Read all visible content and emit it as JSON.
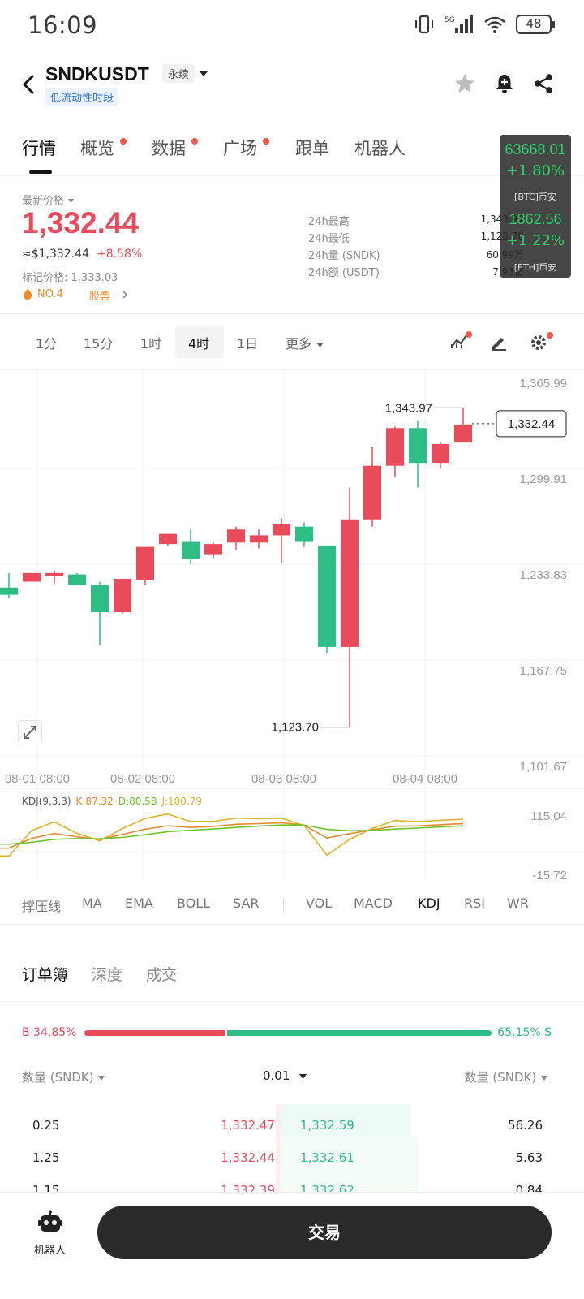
{
  "status_bar": {
    "time": "16:09",
    "battery": "48",
    "network": "5G"
  },
  "header": {
    "symbol": "SNDKUSDT",
    "contract_type": "永续",
    "liquidity_tag": "低流动性时段"
  },
  "tabs": [
    {
      "label": "行情",
      "badge": false
    },
    {
      "label": "概览",
      "badge": true
    },
    {
      "label": "数据",
      "badge": true
    },
    {
      "label": "广场",
      "badge": true
    },
    {
      "label": "跟单",
      "badge": false
    },
    {
      "label": "机器人",
      "badge": false
    }
  ],
  "price": {
    "last_label": "最新价格",
    "last": "1,332.44",
    "usd": "≈$1,332.44",
    "change": "+8.58%",
    "mark": "标记价格: 1,333.03",
    "rank": "NO.4",
    "category": "股票"
  },
  "stats": [
    {
      "label": "24h最高",
      "value": "1,343.97"
    },
    {
      "label": "24h最低",
      "value": "1,123.70"
    },
    {
      "label": "24h量 (SNDK)",
      "value": "60.99万"
    },
    {
      "label": "24h额 (USDT)",
      "value": "7.93亿"
    }
  ],
  "floating_ticker": [
    {
      "price": "63668.01",
      "change": "+1.80%",
      "name": "[BTC]币安"
    },
    {
      "price": "1862.56",
      "change": "+1.22%",
      "name": "[ETH]币安"
    }
  ],
  "timeframes": [
    "1分",
    "15分",
    "1时",
    "4时",
    "1日",
    "更多"
  ],
  "active_timeframe": "4时",
  "chart_data": {
    "type": "candlestick",
    "y_ticks": [
      "1,365.99",
      "1,299.91",
      "1,233.83",
      "1,167.75",
      "1,101.67"
    ],
    "ylim": [
      1101.67,
      1365.99
    ],
    "x_ticks": [
      "08-01 08:00",
      "08-02 08:00",
      "08-03 08:00",
      "08-04 08:00"
    ],
    "candles": [
      [
        1220,
        1230,
        1213,
        1215
      ],
      [
        1224,
        1230,
        1224,
        1230
      ],
      [
        1228,
        1232,
        1223,
        1230
      ],
      [
        1229,
        1230,
        1222,
        1222
      ],
      [
        1222,
        1224,
        1180,
        1203
      ],
      [
        1203,
        1226,
        1202,
        1226
      ],
      [
        1225,
        1248,
        1222,
        1248
      ],
      [
        1250,
        1257,
        1249,
        1257
      ],
      [
        1252,
        1260,
        1236,
        1240
      ],
      [
        1243,
        1251,
        1240,
        1250
      ],
      [
        1251,
        1262,
        1246,
        1260
      ],
      [
        1251,
        1260,
        1247,
        1256
      ],
      [
        1256,
        1268,
        1237,
        1264
      ],
      [
        1262,
        1265,
        1248,
        1252
      ],
      [
        1249,
        1249,
        1175,
        1179
      ],
      [
        1179,
        1289,
        1123.7,
        1267
      ],
      [
        1267,
        1317,
        1262,
        1304
      ],
      [
        1304,
        1331,
        1296,
        1330
      ],
      [
        1330,
        1335,
        1289,
        1306
      ],
      [
        1306,
        1320,
        1302,
        1319
      ],
      [
        1320,
        1343.97,
        1320,
        1332.44
      ]
    ],
    "high_label": "1,343.97",
    "low_label": "1,123.70",
    "last_label": "1,332.44",
    "kdj": {
      "title": "KDJ(9,3,3)",
      "k": "K:87.32",
      "d": "D:80.58",
      "j": "J:100.79",
      "y_ticks": [
        "115.04",
        "-15.72"
      ]
    }
  },
  "indicators": [
    "撑压线",
    "MA",
    "EMA",
    "BOLL",
    "SAR",
    "VOL",
    "MACD",
    "KDJ",
    "RSI",
    "WR"
  ],
  "active_indicator": "KDJ",
  "orderbook": {
    "tabs": [
      "订单簿",
      "深度",
      "成交"
    ],
    "buy_ratio": "B 34.85%",
    "sell_ratio": "65.15% S",
    "buy_fraction": 0.3485,
    "qty_header_left": "数量 (SNDK)",
    "precision": "0.01",
    "qty_header_right": "数量 (SNDK)",
    "rows": [
      {
        "bid_qty": "0.25",
        "bid": "1,332.47",
        "ask": "1,332.59",
        "ask_qty": "56.26"
      },
      {
        "bid_qty": "1.25",
        "bid": "1,332.44",
        "ask": "1,332.61",
        "ask_qty": "5.63"
      },
      {
        "bid_qty": "1.15",
        "bid": "1,332.39",
        "ask": "1,332.62",
        "ask_qty": "0.84"
      }
    ]
  },
  "bottom": {
    "robot_label": "机器人",
    "trade_label": "交易"
  },
  "colors": {
    "up": "#e84c5b",
    "down": "#2ebd85",
    "accent_badge": "#ef5a4c"
  }
}
